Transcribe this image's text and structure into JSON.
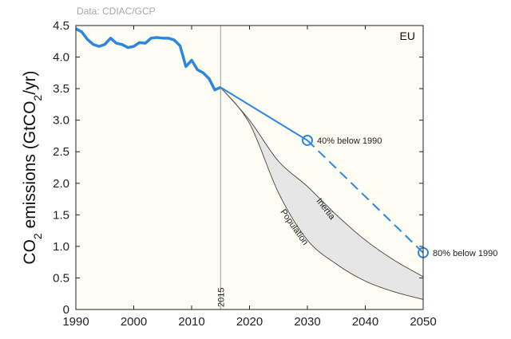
{
  "chart_data": {
    "type": "line",
    "source_note": "Data: CDIAC/GCP",
    "region_label": "EU",
    "ylabel_parts": [
      "CO",
      "2",
      " emissions (GtCO",
      "2",
      "/yr)"
    ],
    "xlabel": "",
    "xlim": [
      1990,
      2050
    ],
    "ylim": [
      0,
      4.5
    ],
    "xticks": [
      1990,
      2000,
      2010,
      2020,
      2030,
      2040,
      2050
    ],
    "yticks": [
      "0",
      "0.5",
      "1.0",
      "1.5",
      "2.0",
      "2.5",
      "3.0",
      "3.5",
      "4.0",
      "4.5"
    ],
    "grid": false,
    "reference_line": {
      "x": 2015,
      "label": "2015"
    },
    "colors": {
      "historical": "#2f86e0",
      "band_fill": "#e6e6e6",
      "band_edge": "#555555",
      "plot_bg": "#fdfdf3"
    },
    "historical": {
      "x": [
        1990,
        1991,
        1992,
        1993,
        1994,
        1995,
        1996,
        1997,
        1998,
        1999,
        2000,
        2001,
        2002,
        2003,
        2004,
        2005,
        2006,
        2007,
        2008,
        2009,
        2010,
        2011,
        2012,
        2013,
        2014,
        2015
      ],
      "y": [
        4.45,
        4.4,
        4.28,
        4.2,
        4.17,
        4.2,
        4.3,
        4.22,
        4.2,
        4.15,
        4.17,
        4.23,
        4.22,
        4.3,
        4.31,
        4.3,
        4.3,
        4.27,
        4.18,
        3.85,
        3.95,
        3.8,
        3.75,
        3.66,
        3.48,
        3.52
      ]
    },
    "targets": [
      {
        "x": 2015,
        "y": 3.52
      },
      {
        "x": 2030,
        "y": 2.68,
        "label": "40% below 1990"
      },
      {
        "x": 2050,
        "y": 0.9,
        "label": "80% below 1990"
      }
    ],
    "band": {
      "x": [
        2015,
        2020,
        2025,
        2030,
        2035,
        2040,
        2045,
        2050
      ],
      "upper": {
        "name": "Inertia",
        "y": [
          3.52,
          3.0,
          2.35,
          1.95,
          1.5,
          1.1,
          0.78,
          0.52
        ]
      },
      "lower": {
        "name": "Population",
        "y": [
          3.52,
          2.95,
          1.85,
          1.1,
          0.72,
          0.45,
          0.28,
          0.16
        ]
      }
    }
  }
}
